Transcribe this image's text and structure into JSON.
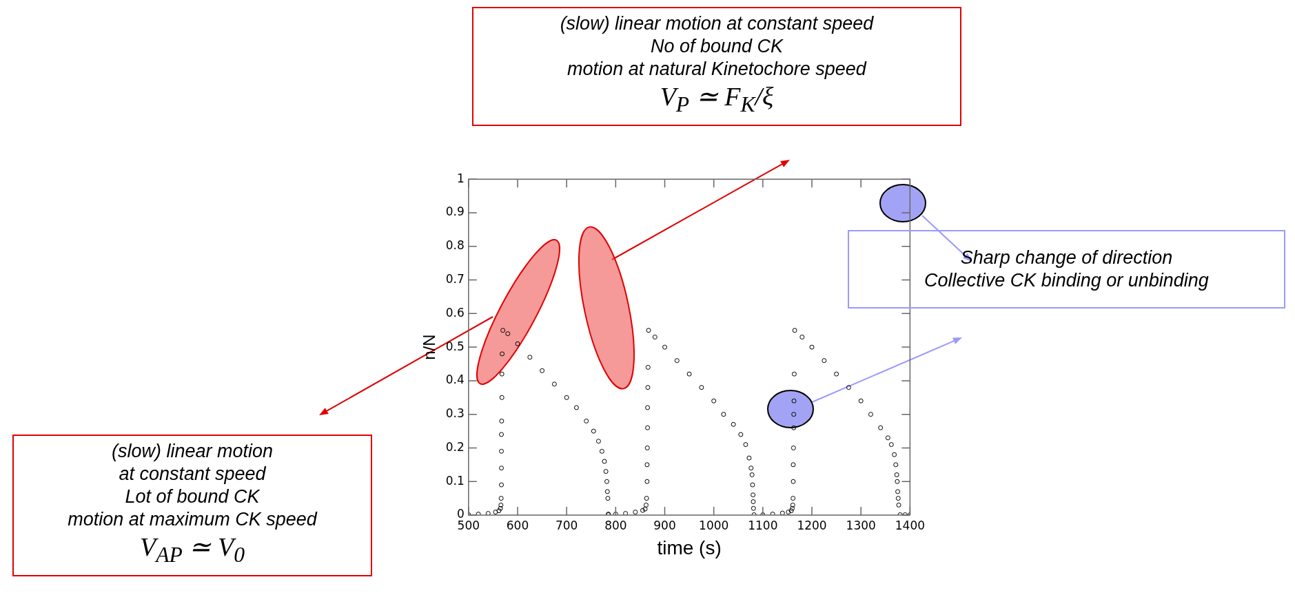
{
  "chart_data": {
    "type": "scatter",
    "xlabel": "time (s)",
    "ylabel": "n/N",
    "x": [
      500,
      520,
      540,
      555,
      562,
      565,
      566,
      566.5,
      567,
      567,
      567,
      567,
      567.5,
      568,
      568,
      568.5,
      570,
      580,
      600,
      625,
      650,
      675,
      700,
      720,
      740,
      755,
      765,
      772,
      777,
      780,
      782,
      783,
      784,
      785,
      785,
      800,
      820,
      840,
      855,
      860,
      862,
      863,
      864,
      864,
      864.5,
      865,
      865,
      865.5,
      866,
      867,
      880,
      900,
      925,
      950,
      975,
      1000,
      1020,
      1040,
      1055,
      1065,
      1072,
      1076,
      1078,
      1079,
      1080,
      1080.5,
      1081,
      1082,
      1100,
      1120,
      1140,
      1152,
      1158,
      1160,
      1161,
      1161.5,
      1162,
      1162,
      1162.5,
      1163,
      1163,
      1163.5,
      1164,
      1165,
      1180,
      1200,
      1225,
      1250,
      1275,
      1300,
      1320,
      1340,
      1355,
      1362,
      1368,
      1371,
      1373,
      1374,
      1375,
      1376,
      1377,
      1380,
      1390,
      1400
    ],
    "values": [
      0.001,
      0.003,
      0.005,
      0.009,
      0.013,
      0.02,
      0.03,
      0.05,
      0.09,
      0.14,
      0.19,
      0.24,
      0.28,
      0.35,
      0.42,
      0.48,
      0.55,
      0.54,
      0.51,
      0.47,
      0.43,
      0.39,
      0.35,
      0.32,
      0.28,
      0.25,
      0.22,
      0.19,
      0.16,
      0.13,
      0.1,
      0.07,
      0.05,
      0.003,
      0.001,
      0.003,
      0.005,
      0.009,
      0.014,
      0.018,
      0.03,
      0.05,
      0.1,
      0.15,
      0.2,
      0.26,
      0.32,
      0.38,
      0.44,
      0.55,
      0.53,
      0.5,
      0.46,
      0.42,
      0.38,
      0.34,
      0.3,
      0.27,
      0.24,
      0.21,
      0.17,
      0.14,
      0.12,
      0.09,
      0.06,
      0.04,
      0.02,
      0.001,
      0.001,
      0.003,
      0.006,
      0.009,
      0.013,
      0.02,
      0.03,
      0.05,
      0.1,
      0.15,
      0.2,
      0.26,
      0.3,
      0.34,
      0.42,
      0.55,
      0.53,
      0.5,
      0.46,
      0.42,
      0.38,
      0.34,
      0.3,
      0.26,
      0.23,
      0.21,
      0.18,
      0.15,
      0.12,
      0.1,
      0.07,
      0.05,
      0.03,
      0.001,
      0.001,
      0.001
    ],
    "color": "#000000",
    "marker": "circle",
    "legend": false,
    "grid": false,
    "xlim": [
      500,
      1400
    ],
    "xticks": [
      500,
      600,
      700,
      800,
      900,
      1000,
      1100,
      1200,
      1300,
      1400
    ],
    "ylim": [
      0,
      1
    ],
    "yticks": [
      0,
      0.1,
      0.2,
      0.3,
      0.4,
      0.5,
      0.6,
      0.7,
      0.8,
      0.9,
      1
    ],
    "annotations": [
      "(slow) linear motion at constant speed\nNo of bound CK\nmotion at natural Kinetochore speed\nV$_{P}$ ≃ F$_{K}$/ξ",
      "(slow) linear motion\nat constant speed\nLot of bound CK\nmotion at maximum CK speed\nV$_{AP}$ ≃ V$_{0}$",
      "Sharp change of direction\nCollective CK binding or unbinding"
    ]
  }
}
